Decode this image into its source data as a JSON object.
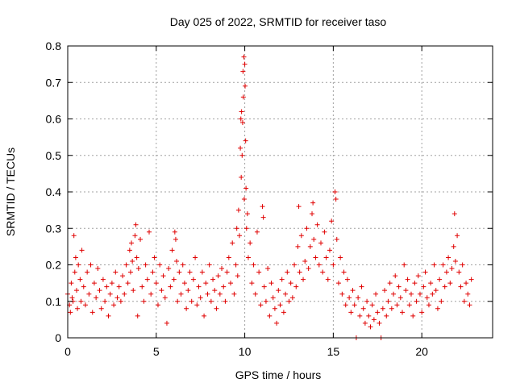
{
  "chart_data": {
    "type": "scatter",
    "title": "Day 025 of 2022, SRMTID for receiver taso",
    "xlabel": "GPS time / hours",
    "ylabel": "SRMTID / TECUs",
    "xlim": [
      0,
      24
    ],
    "ylim": [
      0,
      0.8
    ],
    "xticks": [
      0,
      5,
      10,
      15,
      20
    ],
    "xtick_labels": [
      "0",
      "5",
      "10",
      "15",
      "20"
    ],
    "yticks": [
      0,
      0.1,
      0.2,
      0.3,
      0.4,
      0.5,
      0.6,
      0.7,
      0.8
    ],
    "ytick_labels": [
      "0",
      "0.1",
      "0.2",
      "0.3",
      "0.4",
      "0.5",
      "0.6",
      "0.7",
      "0.8"
    ],
    "grid": true,
    "marker": "+",
    "color": "#e00000",
    "series": [
      {
        "name": "SRMTID",
        "points": [
          [
            0.0,
            0.12
          ],
          [
            0.1,
            0.09
          ],
          [
            0.15,
            0.07
          ],
          [
            0.2,
            0.15
          ],
          [
            0.25,
            0.11
          ],
          [
            0.3,
            0.1
          ],
          [
            0.35,
            0.28
          ],
          [
            0.4,
            0.18
          ],
          [
            0.45,
            0.22
          ],
          [
            0.5,
            0.13
          ],
          [
            0.55,
            0.08
          ],
          [
            0.6,
            0.2
          ],
          [
            0.7,
            0.16
          ],
          [
            0.75,
            0.1
          ],
          [
            0.8,
            0.24
          ],
          [
            0.9,
            0.14
          ],
          [
            1.0,
            0.09
          ],
          [
            1.1,
            0.18
          ],
          [
            1.2,
            0.12
          ],
          [
            1.3,
            0.2
          ],
          [
            1.4,
            0.07
          ],
          [
            1.5,
            0.15
          ],
          [
            1.6,
            0.11
          ],
          [
            1.7,
            0.19
          ],
          [
            1.8,
            0.13
          ],
          [
            1.9,
            0.08
          ],
          [
            2.0,
            0.16
          ],
          [
            2.1,
            0.1
          ],
          [
            2.2,
            0.14
          ],
          [
            2.3,
            0.06
          ],
          [
            2.4,
            0.12
          ],
          [
            2.5,
            0.15
          ],
          [
            2.6,
            0.09
          ],
          [
            2.7,
            0.18
          ],
          [
            2.8,
            0.11
          ],
          [
            2.9,
            0.14
          ],
          [
            3.0,
            0.1
          ],
          [
            3.1,
            0.17
          ],
          [
            3.2,
            0.12
          ],
          [
            3.3,
            0.2
          ],
          [
            3.4,
            0.15
          ],
          [
            3.5,
            0.24
          ],
          [
            3.55,
            0.18
          ],
          [
            3.6,
            0.26
          ],
          [
            3.65,
            0.21
          ],
          [
            3.7,
            0.13
          ],
          [
            3.8,
            0.28
          ],
          [
            3.85,
            0.31
          ],
          [
            3.9,
            0.22
          ],
          [
            3.95,
            0.06
          ],
          [
            4.0,
            0.19
          ],
          [
            4.1,
            0.27
          ],
          [
            4.2,
            0.14
          ],
          [
            4.3,
            0.1
          ],
          [
            4.4,
            0.2
          ],
          [
            4.5,
            0.16
          ],
          [
            4.6,
            0.29
          ],
          [
            4.7,
            0.12
          ],
          [
            4.8,
            0.18
          ],
          [
            4.9,
            0.22
          ],
          [
            5.0,
            0.15
          ],
          [
            5.1,
            0.09
          ],
          [
            5.2,
            0.2
          ],
          [
            5.3,
            0.13
          ],
          [
            5.4,
            0.17
          ],
          [
            5.5,
            0.11
          ],
          [
            5.6,
            0.04
          ],
          [
            5.7,
            0.19
          ],
          [
            5.8,
            0.14
          ],
          [
            5.9,
            0.24
          ],
          [
            6.0,
            0.16
          ],
          [
            6.05,
            0.29
          ],
          [
            6.1,
            0.27
          ],
          [
            6.15,
            0.21
          ],
          [
            6.2,
            0.1
          ],
          [
            6.3,
            0.18
          ],
          [
            6.4,
            0.12
          ],
          [
            6.5,
            0.2
          ],
          [
            6.6,
            0.15
          ],
          [
            6.7,
            0.08
          ],
          [
            6.8,
            0.13
          ],
          [
            6.9,
            0.18
          ],
          [
            7.0,
            0.1
          ],
          [
            7.1,
            0.16
          ],
          [
            7.2,
            0.22
          ],
          [
            7.3,
            0.09
          ],
          [
            7.4,
            0.14
          ],
          [
            7.5,
            0.11
          ],
          [
            7.6,
            0.18
          ],
          [
            7.7,
            0.06
          ],
          [
            7.8,
            0.15
          ],
          [
            7.9,
            0.12
          ],
          [
            8.0,
            0.2
          ],
          [
            8.1,
            0.1
          ],
          [
            8.2,
            0.16
          ],
          [
            8.3,
            0.13
          ],
          [
            8.4,
            0.08
          ],
          [
            8.5,
            0.17
          ],
          [
            8.6,
            0.12
          ],
          [
            8.7,
            0.19
          ],
          [
            8.8,
            0.14
          ],
          [
            8.9,
            0.1
          ],
          [
            9.0,
            0.18
          ],
          [
            9.1,
            0.22
          ],
          [
            9.2,
            0.15
          ],
          [
            9.3,
            0.26
          ],
          [
            9.4,
            0.12
          ],
          [
            9.5,
            0.2
          ],
          [
            9.55,
            0.3
          ],
          [
            9.6,
            0.17
          ],
          [
            9.65,
            0.35
          ],
          [
            9.7,
            0.28
          ],
          [
            9.75,
            0.52
          ],
          [
            9.78,
            0.6
          ],
          [
            9.8,
            0.44
          ],
          [
            9.82,
            0.62
          ],
          [
            9.85,
            0.5
          ],
          [
            9.88,
            0.59
          ],
          [
            9.9,
            0.73
          ],
          [
            9.92,
            0.66
          ],
          [
            9.95,
            0.77
          ],
          [
            9.97,
            0.38
          ],
          [
            10.0,
            0.75
          ],
          [
            10.02,
            0.69
          ],
          [
            10.05,
            0.54
          ],
          [
            10.07,
            0.41
          ],
          [
            10.1,
            0.3
          ],
          [
            10.15,
            0.34
          ],
          [
            10.2,
            0.22
          ],
          [
            10.3,
            0.26
          ],
          [
            10.4,
            0.15
          ],
          [
            10.5,
            0.2
          ],
          [
            10.6,
            0.12
          ],
          [
            10.7,
            0.29
          ],
          [
            10.8,
            0.18
          ],
          [
            10.9,
            0.09
          ],
          [
            11.0,
            0.36
          ],
          [
            11.05,
            0.33
          ],
          [
            11.1,
            0.14
          ],
          [
            11.2,
            0.1
          ],
          [
            11.3,
            0.19
          ],
          [
            11.4,
            0.06
          ],
          [
            11.5,
            0.15
          ],
          [
            11.6,
            0.11
          ],
          [
            11.7,
            0.08
          ],
          [
            11.8,
            0.04
          ],
          [
            11.9,
            0.13
          ],
          [
            12.0,
            0.09
          ],
          [
            12.1,
            0.16
          ],
          [
            12.2,
            0.07
          ],
          [
            12.3,
            0.12
          ],
          [
            12.4,
            0.18
          ],
          [
            12.5,
            0.1
          ],
          [
            12.6,
            0.15
          ],
          [
            12.7,
            0.11
          ],
          [
            12.8,
            0.2
          ],
          [
            12.9,
            0.14
          ],
          [
            13.0,
            0.25
          ],
          [
            13.05,
            0.36
          ],
          [
            13.1,
            0.18
          ],
          [
            13.2,
            0.28
          ],
          [
            13.3,
            0.16
          ],
          [
            13.4,
            0.21
          ],
          [
            13.5,
            0.3
          ],
          [
            13.6,
            0.19
          ],
          [
            13.7,
            0.25
          ],
          [
            13.8,
            0.34
          ],
          [
            13.85,
            0.37
          ],
          [
            13.9,
            0.27
          ],
          [
            14.0,
            0.22
          ],
          [
            14.1,
            0.31
          ],
          [
            14.2,
            0.2
          ],
          [
            14.3,
            0.26
          ],
          [
            14.4,
            0.18
          ],
          [
            14.5,
            0.29
          ],
          [
            14.6,
            0.22
          ],
          [
            14.7,
            0.16
          ],
          [
            14.8,
            0.24
          ],
          [
            14.9,
            0.32
          ],
          [
            15.0,
            0.2
          ],
          [
            15.1,
            0.4
          ],
          [
            15.15,
            0.38
          ],
          [
            15.2,
            0.27
          ],
          [
            15.3,
            0.15
          ],
          [
            15.4,
            0.22
          ],
          [
            15.5,
            0.12
          ],
          [
            15.6,
            0.18
          ],
          [
            15.7,
            0.09
          ],
          [
            15.8,
            0.16
          ],
          [
            15.9,
            0.11
          ],
          [
            16.0,
            0.07
          ],
          [
            16.1,
            0.13
          ],
          [
            16.2,
            0.09
          ],
          [
            16.3,
            0.0
          ],
          [
            16.4,
            0.11
          ],
          [
            16.5,
            0.06
          ],
          [
            16.6,
            0.14
          ],
          [
            16.7,
            0.08
          ],
          [
            16.8,
            0.04
          ],
          [
            16.9,
            0.1
          ],
          [
            17.0,
            0.06
          ],
          [
            17.1,
            0.03
          ],
          [
            17.2,
            0.09
          ],
          [
            17.3,
            0.05
          ],
          [
            17.4,
            0.12
          ],
          [
            17.5,
            0.07
          ],
          [
            17.6,
            0.04
          ],
          [
            17.7,
            0.0
          ],
          [
            17.8,
            0.08
          ],
          [
            17.9,
            0.13
          ],
          [
            18.0,
            0.06
          ],
          [
            18.1,
            0.1
          ],
          [
            18.2,
            0.15
          ],
          [
            18.3,
            0.08
          ],
          [
            18.4,
            0.12
          ],
          [
            18.5,
            0.17
          ],
          [
            18.6,
            0.09
          ],
          [
            18.7,
            0.14
          ],
          [
            18.8,
            0.11
          ],
          [
            18.9,
            0.07
          ],
          [
            19.0,
            0.2
          ],
          [
            19.1,
            0.13
          ],
          [
            19.2,
            0.16
          ],
          [
            19.3,
            0.09
          ],
          [
            19.4,
            0.12
          ],
          [
            19.5,
            0.06
          ],
          [
            19.6,
            0.15
          ],
          [
            19.7,
            0.1
          ],
          [
            19.8,
            0.17
          ],
          [
            19.9,
            0.12
          ],
          [
            20.0,
            0.07
          ],
          [
            20.1,
            0.14
          ],
          [
            20.2,
            0.18
          ],
          [
            20.3,
            0.11
          ],
          [
            20.4,
            0.09
          ],
          [
            20.5,
            0.15
          ],
          [
            20.6,
            0.12
          ],
          [
            20.7,
            0.2
          ],
          [
            20.8,
            0.13
          ],
          [
            20.9,
            0.08
          ],
          [
            21.0,
            0.16
          ],
          [
            21.1,
            0.1
          ],
          [
            21.2,
            0.2
          ],
          [
            21.3,
            0.14
          ],
          [
            21.4,
            0.18
          ],
          [
            21.5,
            0.22
          ],
          [
            21.6,
            0.15
          ],
          [
            21.7,
            0.19
          ],
          [
            21.8,
            0.25
          ],
          [
            21.85,
            0.34
          ],
          [
            21.9,
            0.21
          ],
          [
            22.0,
            0.28
          ],
          [
            22.1,
            0.18
          ],
          [
            22.2,
            0.14
          ],
          [
            22.3,
            0.2
          ],
          [
            22.4,
            0.1
          ],
          [
            22.5,
            0.15
          ],
          [
            22.6,
            0.12
          ],
          [
            22.7,
            0.09
          ],
          [
            22.8,
            0.16
          ]
        ]
      }
    ]
  }
}
